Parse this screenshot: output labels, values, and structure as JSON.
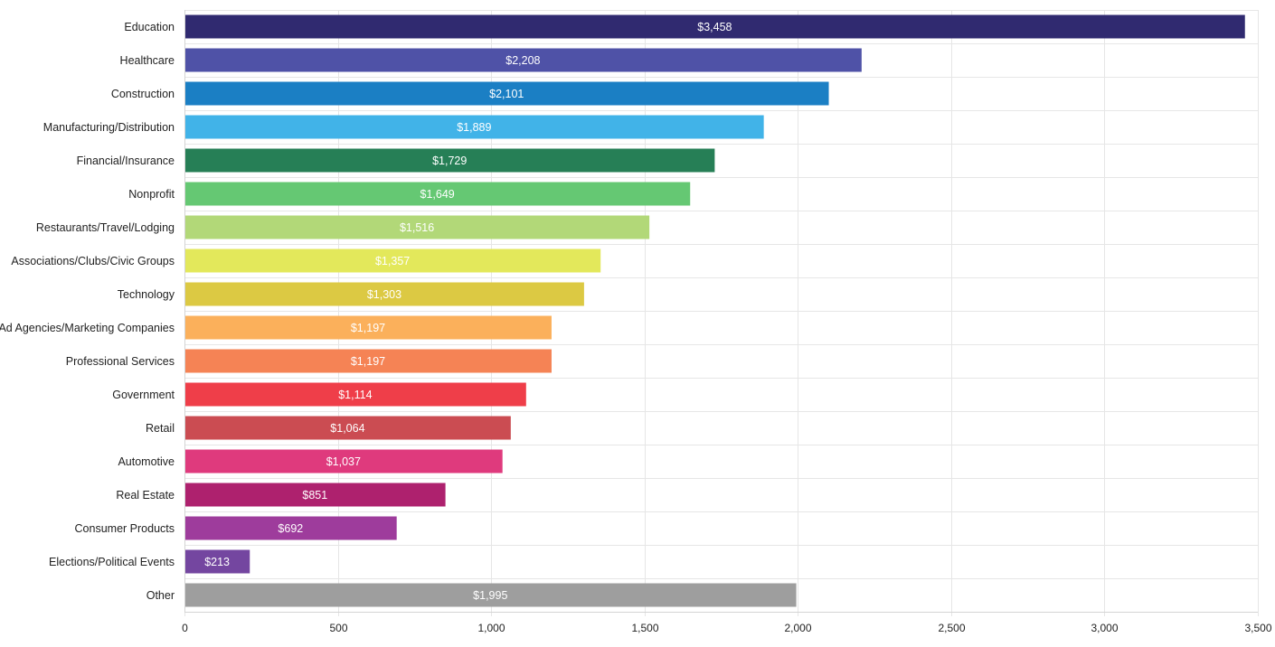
{
  "chart_data": {
    "type": "bar",
    "orientation": "horizontal",
    "title": "",
    "xlabel": "",
    "ylabel": "",
    "xlim": [
      0,
      3500
    ],
    "x_ticks": [
      0,
      500,
      1000,
      1500,
      2000,
      2500,
      3000,
      3500
    ],
    "x_tick_labels": [
      "0",
      "500",
      "1,000",
      "1,500",
      "2,000",
      "2,500",
      "3,000",
      "3,500"
    ],
    "grid": true,
    "legend": "none",
    "categories": [
      "Education",
      "Healthcare",
      "Construction",
      "Manufacturing/Distribution",
      "Financial/Insurance",
      "Nonprofit",
      "Restaurants/Travel/Lodging",
      "Associations/Clubs/Civic Groups",
      "Technology",
      "Ad Agencies/Marketing Companies",
      "Professional Services",
      "Government",
      "Retail",
      "Automotive",
      "Real Estate",
      "Consumer Products",
      "Elections/Political Events",
      "Other"
    ],
    "values": [
      3458,
      2208,
      2101,
      1889,
      1729,
      1649,
      1516,
      1357,
      1303,
      1197,
      1197,
      1114,
      1064,
      1037,
      851,
      692,
      213,
      1995
    ],
    "data_labels": [
      "$3,458",
      "$2,208",
      "$2,101",
      "$1,889",
      "$1,729",
      "$1,649",
      "$1,516",
      "$1,357",
      "$1,303",
      "$1,197",
      "$1,197",
      "$1,114",
      "$1,064",
      "$1,037",
      "$851",
      "$692",
      "$213",
      "$1,995"
    ],
    "colors": [
      "#302a70",
      "#4f52a7",
      "#1b7fc4",
      "#41b3e8",
      "#267f56",
      "#65c873",
      "#b2d878",
      "#e3e85b",
      "#dcc943",
      "#fbb05b",
      "#f58355",
      "#ef3e49",
      "#cb4c52",
      "#df3a7d",
      "#ae216e",
      "#9e3c9c",
      "#7446a0",
      "#9e9e9e"
    ]
  }
}
